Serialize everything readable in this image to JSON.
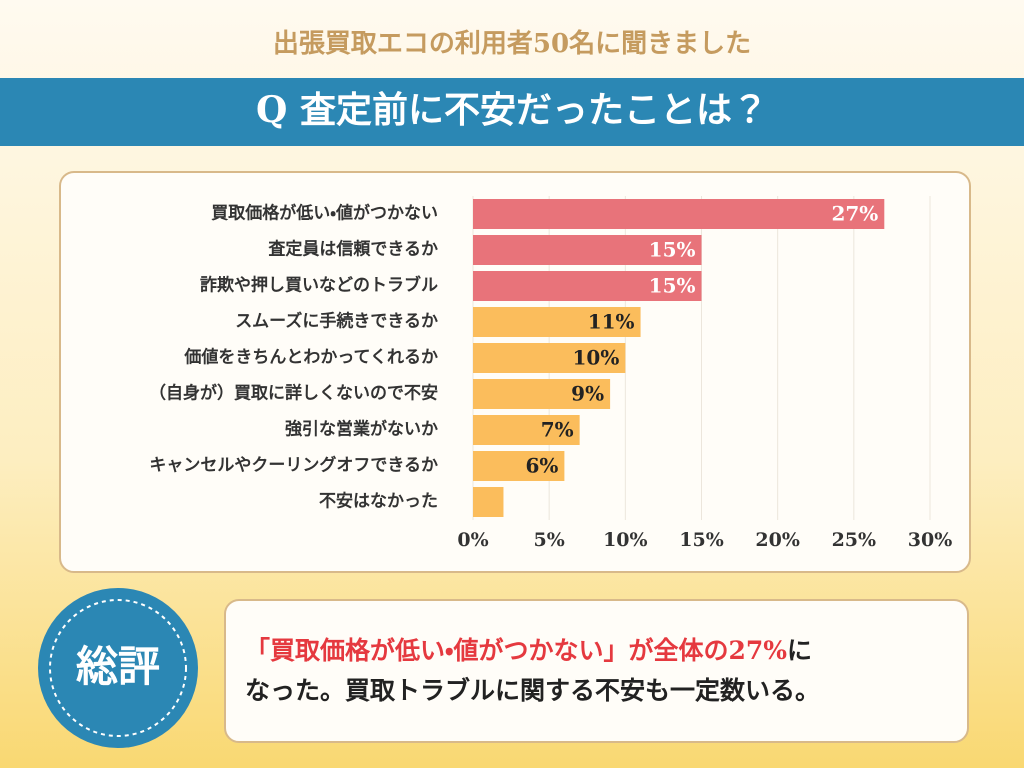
{
  "header": {
    "title": "出張買取エコの利用者50名に聞きました",
    "question": "Q 査定前に不安だったことは？"
  },
  "chart_data": {
    "type": "hbar",
    "categories": [
      "買取価格が低い・値がつかない",
      "査定員は信頼できるか",
      "詐欺や押し買いなどのトラブル",
      "スムーズに手続きできるか",
      "価値をきちんとわかってくれるか",
      "（自身が）買取に詳しくないので不安",
      "強引な営業がないか",
      "キャンセルやクーリングオフできるか",
      "不安はなかった"
    ],
    "values": [
      27,
      15,
      15,
      11,
      10,
      9,
      7,
      6,
      2
    ],
    "value_labels": [
      "27%",
      "15%",
      "15%",
      "11%",
      "10%",
      "9%",
      "7%",
      "6%",
      null
    ],
    "colors": [
      "#e8737a",
      "#e8737a",
      "#e8737a",
      "#fbbd5c",
      "#fbbd5c",
      "#fbbd5c",
      "#fbbd5c",
      "#fbbd5c",
      "#fbbd5c"
    ],
    "label_colors": [
      "#ffffff",
      "#ffffff",
      "#ffffff",
      "#222222",
      "#222222",
      "#222222",
      "#222222",
      "#222222",
      "#222222"
    ],
    "xlim": [
      0,
      30
    ],
    "xticks": [
      {
        "value": 0,
        "label": "0%"
      },
      {
        "value": 5,
        "label": "5%"
      },
      {
        "value": 10,
        "label": "10%"
      },
      {
        "value": 15,
        "label": "15%"
      },
      {
        "value": 20,
        "label": "20%"
      },
      {
        "value": 25,
        "label": "25%"
      },
      {
        "value": 30,
        "label": "30%"
      }
    ],
    "grid": true
  },
  "summary": {
    "badge": "総評",
    "text": [
      {
        "text": "「買取価格が低い・値がつかない」が全体の27%",
        "highlight": true
      },
      {
        "text": "に",
        "highlight": false
      },
      {
        "text": "なった。買取トラブルに関する不安も一定数いる。",
        "highlight": false
      }
    ]
  }
}
